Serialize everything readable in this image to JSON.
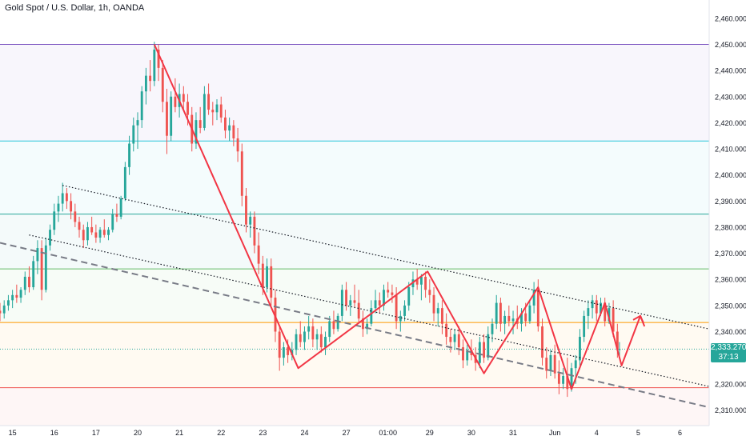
{
  "chart_data": {
    "type": "candlestick",
    "title": "Gold Spot / U.S. Dollar, 1h, OANDA",
    "y_ticks": [
      "2,460.000",
      "2,450.000",
      "2,440.000",
      "2,430.000",
      "2,420.000",
      "2,410.000",
      "2,400.000",
      "2,390.000",
      "2,380.000",
      "2,370.000",
      "2,360.000",
      "2,350.000",
      "2,340.000",
      "2,330.000",
      "2,320.000",
      "2,310.000"
    ],
    "y_tick_values": [
      2460,
      2450,
      2440,
      2430,
      2420,
      2410,
      2400,
      2390,
      2380,
      2370,
      2360,
      2350,
      2340,
      2330,
      2320,
      2310
    ],
    "ylim": [
      2304,
      2467
    ],
    "x_ticks": [
      "15",
      "16",
      "17",
      "20",
      "21",
      "22",
      "23",
      "24",
      "27",
      "01:00",
      "29",
      "30",
      "31",
      "Jun",
      "4",
      "5",
      "6"
    ],
    "x_tick_positions": [
      0,
      1,
      2,
      3,
      4,
      5,
      6,
      7,
      8,
      9,
      10,
      11,
      12,
      13,
      14,
      15,
      16
    ],
    "xlim": [
      -0.3,
      16.7
    ],
    "last_price": "2,333.270",
    "countdown": "37:13",
    "horizontal_levels": [
      {
        "price": 2450,
        "color": "#7e57c2"
      },
      {
        "price": 2413,
        "color": "#26c6da"
      },
      {
        "price": 2385,
        "color": "#26a69a"
      },
      {
        "price": 2364,
        "color": "#66bb6a"
      },
      {
        "price": 2343.5,
        "color": "#ff9800"
      },
      {
        "price": 2318.5,
        "color": "#ef5350"
      },
      {
        "price": 2333.3,
        "color": "#26a69a",
        "dotted": true
      }
    ],
    "colors": {
      "up": "#26a69a",
      "down": "#ef5350",
      "zigzag": "#f23645",
      "trend": "#131722",
      "dashed": "#787b86"
    },
    "trendlines": [
      {
        "style": "dotted",
        "points": [
          [
            1.2,
            2396
          ],
          [
            16.7,
            2341
          ]
        ]
      },
      {
        "style": "dotted",
        "points": [
          [
            0.4,
            2377
          ],
          [
            16.7,
            2319
          ]
        ]
      },
      {
        "style": "dashed",
        "points": [
          [
            -0.3,
            2374
          ],
          [
            16.7,
            2311
          ]
        ]
      }
    ],
    "zigzag": [
      [
        3.4,
        2450
      ],
      [
        6.85,
        2326
      ],
      [
        9.95,
        2363
      ],
      [
        11.3,
        2324
      ],
      [
        12.6,
        2357
      ],
      [
        13.4,
        2318
      ],
      [
        14.2,
        2351
      ],
      [
        14.6,
        2327
      ],
      [
        15.05,
        2346
      ],
      [
        15.15,
        2342
      ]
    ],
    "candles": [
      [
        -0.3,
        2348,
        2351,
        2344,
        2347
      ],
      [
        -0.2,
        2347,
        2352,
        2345,
        2350
      ],
      [
        -0.1,
        2350,
        2354,
        2348,
        2352
      ],
      [
        0.0,
        2352,
        2356,
        2349,
        2354
      ],
      [
        0.1,
        2354,
        2358,
        2351,
        2353
      ],
      [
        0.2,
        2353,
        2357,
        2351,
        2356
      ],
      [
        0.3,
        2356,
        2363,
        2354,
        2361
      ],
      [
        0.4,
        2361,
        2365,
        2355,
        2357
      ],
      [
        0.5,
        2357,
        2369,
        2356,
        2367
      ],
      [
        0.6,
        2367,
        2375,
        2362,
        2372
      ],
      [
        0.7,
        2372,
        2375,
        2352,
        2356
      ],
      [
        0.8,
        2356,
        2376,
        2355,
        2373
      ],
      [
        0.9,
        2373,
        2381,
        2371,
        2379
      ],
      [
        1.0,
        2379,
        2389,
        2377,
        2386
      ],
      [
        1.1,
        2386,
        2392,
        2382,
        2389
      ],
      [
        1.2,
        2389,
        2397,
        2386,
        2393
      ],
      [
        1.3,
        2393,
        2395,
        2387,
        2390
      ],
      [
        1.4,
        2390,
        2393,
        2383,
        2386
      ],
      [
        1.5,
        2386,
        2389,
        2380,
        2382
      ],
      [
        1.6,
        2382,
        2384,
        2376,
        2379
      ],
      [
        1.7,
        2379,
        2381,
        2372,
        2375
      ],
      [
        1.8,
        2375,
        2382,
        2373,
        2380
      ],
      [
        1.9,
        2380,
        2384,
        2377,
        2378
      ],
      [
        2.0,
        2378,
        2381,
        2374,
        2376
      ],
      [
        2.1,
        2376,
        2380,
        2374,
        2379
      ],
      [
        2.2,
        2379,
        2383,
        2376,
        2377
      ],
      [
        2.3,
        2377,
        2380,
        2375,
        2379
      ],
      [
        2.4,
        2379,
        2387,
        2378,
        2385
      ],
      [
        2.5,
        2385,
        2389,
        2382,
        2384
      ],
      [
        2.6,
        2384,
        2392,
        2383,
        2391
      ],
      [
        2.7,
        2391,
        2405,
        2390,
        2403
      ],
      [
        2.8,
        2403,
        2415,
        2400,
        2412
      ],
      [
        2.9,
        2412,
        2422,
        2409,
        2419
      ],
      [
        3.0,
        2419,
        2424,
        2410,
        2421
      ],
      [
        3.1,
        2421,
        2434,
        2418,
        2432
      ],
      [
        3.2,
        2432,
        2441,
        2427,
        2438
      ],
      [
        3.3,
        2438,
        2444,
        2432,
        2436
      ],
      [
        3.4,
        2436,
        2451,
        2434,
        2448
      ],
      [
        3.5,
        2448,
        2450,
        2436,
        2441
      ],
      [
        3.6,
        2441,
        2444,
        2424,
        2428
      ],
      [
        3.7,
        2428,
        2433,
        2408,
        2415
      ],
      [
        3.8,
        2415,
        2432,
        2413,
        2430
      ],
      [
        3.9,
        2430,
        2437,
        2424,
        2426
      ],
      [
        4.0,
        2426,
        2435,
        2422,
        2431
      ],
      [
        4.1,
        2431,
        2434,
        2425,
        2428
      ],
      [
        4.2,
        2428,
        2431,
        2419,
        2423
      ],
      [
        4.3,
        2423,
        2426,
        2409,
        2412
      ],
      [
        4.4,
        2412,
        2424,
        2410,
        2421
      ],
      [
        4.5,
        2421,
        2426,
        2416,
        2418
      ],
      [
        4.6,
        2418,
        2434,
        2417,
        2431
      ],
      [
        4.7,
        2431,
        2435,
        2423,
        2425
      ],
      [
        4.8,
        2425,
        2428,
        2419,
        2424
      ],
      [
        4.9,
        2424,
        2429,
        2421,
        2427
      ],
      [
        5.0,
        2427,
        2430,
        2420,
        2422
      ],
      [
        5.1,
        2422,
        2425,
        2414,
        2417
      ],
      [
        5.2,
        2417,
        2422,
        2413,
        2419
      ],
      [
        5.3,
        2419,
        2421,
        2411,
        2414
      ],
      [
        5.4,
        2414,
        2418,
        2405,
        2409
      ],
      [
        5.5,
        2409,
        2412,
        2388,
        2392
      ],
      [
        5.6,
        2392,
        2395,
        2378,
        2381
      ],
      [
        5.7,
        2381,
        2386,
        2376,
        2384
      ],
      [
        5.8,
        2384,
        2386,
        2370,
        2373
      ],
      [
        5.9,
        2373,
        2378,
        2362,
        2366
      ],
      [
        6.0,
        2366,
        2369,
        2354,
        2357
      ],
      [
        6.1,
        2357,
        2368,
        2355,
        2365
      ],
      [
        6.2,
        2365,
        2368,
        2350,
        2353
      ],
      [
        6.3,
        2353,
        2356,
        2336,
        2340
      ],
      [
        6.4,
        2340,
        2342,
        2325,
        2330
      ],
      [
        6.5,
        2330,
        2336,
        2327,
        2334
      ],
      [
        6.6,
        2334,
        2337,
        2328,
        2331
      ],
      [
        6.7,
        2331,
        2336,
        2329,
        2333
      ],
      [
        6.8,
        2333,
        2341,
        2331,
        2339
      ],
      [
        6.9,
        2339,
        2344,
        2334,
        2336
      ],
      [
        7.0,
        2336,
        2342,
        2333,
        2340
      ],
      [
        7.1,
        2340,
        2346,
        2337,
        2342
      ],
      [
        7.2,
        2342,
        2345,
        2334,
        2337
      ],
      [
        7.3,
        2337,
        2341,
        2333,
        2339
      ],
      [
        7.4,
        2339,
        2342,
        2332,
        2334
      ],
      [
        7.5,
        2334,
        2340,
        2331,
        2338
      ],
      [
        7.6,
        2338,
        2346,
        2336,
        2344
      ],
      [
        7.7,
        2344,
        2348,
        2339,
        2341
      ],
      [
        7.8,
        2341,
        2347,
        2340,
        2346
      ],
      [
        7.9,
        2346,
        2358,
        2344,
        2356
      ],
      [
        8.0,
        2356,
        2359,
        2348,
        2350
      ],
      [
        8.1,
        2350,
        2354,
        2346,
        2352
      ],
      [
        8.2,
        2352,
        2358,
        2349,
        2351
      ],
      [
        8.3,
        2351,
        2356,
        2343,
        2345
      ],
      [
        8.4,
        2345,
        2348,
        2338,
        2341
      ],
      [
        8.5,
        2341,
        2345,
        2339,
        2343
      ],
      [
        8.6,
        2343,
        2352,
        2342,
        2349
      ],
      [
        8.7,
        2349,
        2356,
        2347,
        2352
      ],
      [
        8.8,
        2352,
        2355,
        2347,
        2350
      ],
      [
        8.9,
        2350,
        2358,
        2348,
        2356
      ],
      [
        9.0,
        2356,
        2359,
        2353,
        2355
      ],
      [
        9.1,
        2355,
        2358,
        2351,
        2354
      ],
      [
        9.2,
        2354,
        2357,
        2341,
        2344
      ],
      [
        9.3,
        2344,
        2348,
        2340,
        2346
      ],
      [
        9.4,
        2346,
        2352,
        2344,
        2350
      ],
      [
        9.5,
        2350,
        2359,
        2348,
        2357
      ],
      [
        9.6,
        2357,
        2363,
        2354,
        2360
      ],
      [
        9.7,
        2360,
        2364,
        2356,
        2358
      ],
      [
        9.8,
        2358,
        2362,
        2352,
        2361
      ],
      [
        9.9,
        2361,
        2363,
        2353,
        2356
      ],
      [
        10.0,
        2356,
        2360,
        2351,
        2354
      ],
      [
        10.1,
        2354,
        2357,
        2344,
        2347
      ],
      [
        10.2,
        2347,
        2351,
        2342,
        2349
      ],
      [
        10.3,
        2349,
        2352,
        2339,
        2343
      ],
      [
        10.4,
        2343,
        2347,
        2335,
        2338
      ],
      [
        10.5,
        2338,
        2341,
        2332,
        2336
      ],
      [
        10.6,
        2336,
        2341,
        2333,
        2339
      ],
      [
        10.7,
        2339,
        2342,
        2331,
        2334
      ],
      [
        10.8,
        2334,
        2337,
        2326,
        2329
      ],
      [
        10.9,
        2329,
        2335,
        2327,
        2333
      ],
      [
        11.0,
        2333,
        2337,
        2329,
        2331
      ],
      [
        11.1,
        2331,
        2334,
        2325,
        2328
      ],
      [
        11.2,
        2328,
        2338,
        2326,
        2336
      ],
      [
        11.3,
        2336,
        2339,
        2328,
        2330
      ],
      [
        11.4,
        2330,
        2342,
        2329,
        2339
      ],
      [
        11.5,
        2339,
        2345,
        2336,
        2343
      ],
      [
        11.6,
        2343,
        2354,
        2341,
        2351
      ],
      [
        11.7,
        2351,
        2353,
        2340,
        2343
      ],
      [
        11.8,
        2343,
        2348,
        2339,
        2346
      ],
      [
        11.9,
        2346,
        2350,
        2342,
        2344
      ],
      [
        12.0,
        2344,
        2348,
        2339,
        2345
      ],
      [
        12.1,
        2345,
        2350,
        2341,
        2343
      ],
      [
        12.2,
        2343,
        2349,
        2340,
        2347
      ],
      [
        12.3,
        2347,
        2351,
        2342,
        2344
      ],
      [
        12.4,
        2344,
        2352,
        2343,
        2350
      ],
      [
        12.5,
        2350,
        2359,
        2347,
        2356
      ],
      [
        12.6,
        2356,
        2360,
        2340,
        2342
      ],
      [
        12.7,
        2342,
        2345,
        2327,
        2330
      ],
      [
        12.8,
        2330,
        2334,
        2322,
        2325
      ],
      [
        12.9,
        2325,
        2333,
        2323,
        2331
      ],
      [
        13.0,
        2331,
        2335,
        2322,
        2324
      ],
      [
        13.1,
        2324,
        2329,
        2316,
        2320
      ],
      [
        13.2,
        2320,
        2326,
        2318,
        2323
      ],
      [
        13.3,
        2323,
        2330,
        2315,
        2318
      ],
      [
        13.4,
        2318,
        2328,
        2317,
        2326
      ],
      [
        13.5,
        2326,
        2331,
        2320,
        2329
      ],
      [
        13.6,
        2329,
        2341,
        2327,
        2338
      ],
      [
        13.7,
        2338,
        2348,
        2336,
        2346
      ],
      [
        13.8,
        2346,
        2352,
        2341,
        2349
      ],
      [
        13.9,
        2349,
        2354,
        2345,
        2352
      ],
      [
        14.0,
        2352,
        2354,
        2344,
        2347
      ],
      [
        14.1,
        2347,
        2353,
        2346,
        2351
      ],
      [
        14.2,
        2351,
        2353,
        2342,
        2344
      ],
      [
        14.3,
        2344,
        2351,
        2343,
        2349
      ],
      [
        14.4,
        2349,
        2352,
        2338,
        2340
      ],
      [
        14.5,
        2340,
        2343,
        2330,
        2333
      ],
      [
        14.55,
        2333,
        2336,
        2330,
        2333.3
      ]
    ]
  }
}
